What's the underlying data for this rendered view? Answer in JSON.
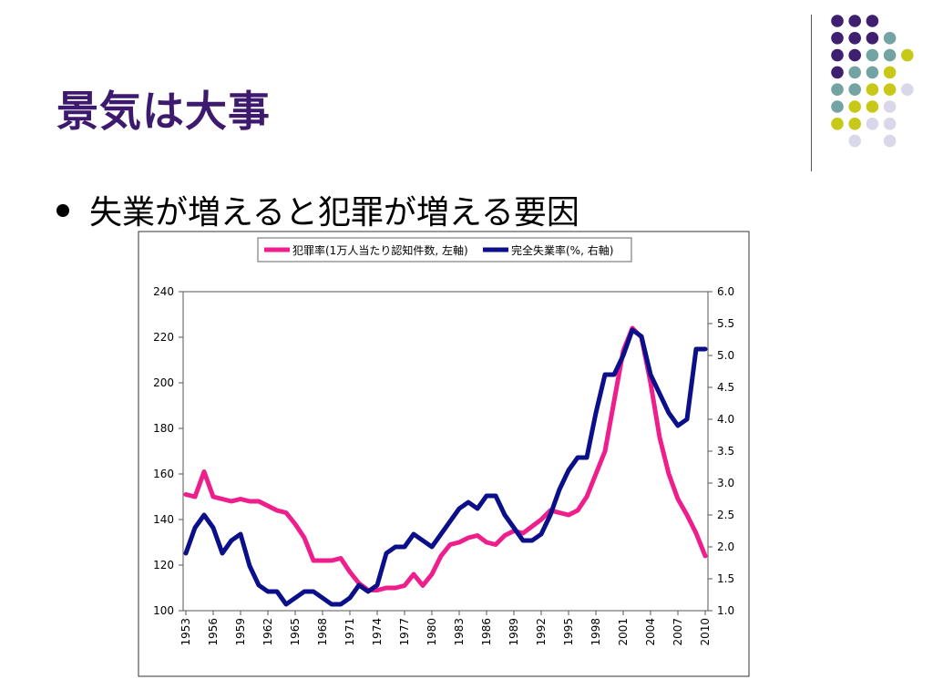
{
  "slide": {
    "title": "景気は大事",
    "bullet": "失業が増えると犯罪が増える要因"
  },
  "decoration": {
    "dot_colors": {
      "purple": "#3f1f6f",
      "teal": "#74a3a4",
      "yellow": "#c8c818",
      "lavender": "#d8d8ea"
    },
    "dot_grid": [
      [
        null,
        "purple",
        "purple",
        "purple",
        null
      ],
      [
        null,
        "purple",
        "purple",
        "purple",
        "teal"
      ],
      [
        null,
        "purple",
        "purple",
        "teal",
        "teal",
        "yellow"
      ],
      [
        null,
        "purple",
        "teal",
        "teal",
        "yellow"
      ],
      [
        null,
        "teal",
        "teal",
        "yellow",
        "yellow",
        "lavender"
      ],
      [
        null,
        "teal",
        "yellow",
        "yellow",
        "lavender"
      ],
      [
        null,
        "yellow",
        "yellow",
        "lavender",
        "lavender"
      ],
      [
        null,
        null,
        "lavender",
        null,
        "lavender"
      ]
    ]
  },
  "chart_data": {
    "type": "line",
    "colors": {
      "crime": "#ee1e8c",
      "unemployment": "#0b0f8a"
    },
    "legend": [
      {
        "name": "犯罪率(1万人当たり認知件数, 左軸)",
        "color": "#ee1e8c"
      },
      {
        "name": "完全失業率(%, 右軸)",
        "color": "#0b0f8a"
      }
    ],
    "y_left": {
      "min": 100,
      "max": 240,
      "ticks": [
        "100",
        "120",
        "140",
        "160",
        "180",
        "200",
        "220",
        "240"
      ]
    },
    "y_right": {
      "min": 1.0,
      "max": 6.0,
      "ticks": [
        "1.0",
        "1.5",
        "2.0",
        "2.5",
        "3.0",
        "3.5",
        "4.0",
        "4.5",
        "5.0",
        "5.5",
        "6.0"
      ]
    },
    "x_ticks": [
      "1953",
      "1956",
      "1959",
      "1962",
      "1965",
      "1968",
      "1971",
      "1974",
      "1977",
      "1980",
      "1983",
      "1986",
      "1989",
      "1992",
      "1995",
      "1998",
      "2001",
      "2004",
      "2007",
      "2010"
    ],
    "x_range": [
      1953,
      2010
    ],
    "series": [
      {
        "name": "犯罪率(1万人当たり認知件数, 左軸)",
        "axis": "left",
        "x": [
          1953,
          1954,
          1955,
          1956,
          1957,
          1958,
          1959,
          1960,
          1961,
          1962,
          1963,
          1964,
          1965,
          1966,
          1967,
          1968,
          1969,
          1970,
          1971,
          1972,
          1973,
          1974,
          1975,
          1976,
          1977,
          1978,
          1979,
          1980,
          1981,
          1982,
          1983,
          1984,
          1985,
          1986,
          1987,
          1988,
          1989,
          1990,
          1991,
          1992,
          1993,
          1994,
          1995,
          1996,
          1997,
          1998,
          1999,
          2000,
          2001,
          2002,
          2003,
          2004,
          2005,
          2006,
          2007,
          2008,
          2009,
          2010
        ],
        "values": [
          151,
          150,
          161,
          150,
          149,
          148,
          149,
          148,
          148,
          146,
          144,
          143,
          138,
          132,
          122,
          122,
          122,
          123,
          117,
          112,
          109,
          109,
          110,
          110,
          111,
          116,
          111,
          116,
          124,
          129,
          130,
          132,
          133,
          130,
          129,
          133,
          135,
          134,
          137,
          140,
          144,
          143,
          142,
          144,
          150,
          160,
          170,
          192,
          214,
          224,
          220,
          200,
          176,
          160,
          149,
          142,
          134,
          124
        ]
      },
      {
        "name": "完全失業率(%, 右軸)",
        "axis": "right",
        "x": [
          1953,
          1954,
          1955,
          1956,
          1957,
          1958,
          1959,
          1960,
          1961,
          1962,
          1963,
          1964,
          1965,
          1966,
          1967,
          1968,
          1969,
          1970,
          1971,
          1972,
          1973,
          1974,
          1975,
          1976,
          1977,
          1978,
          1979,
          1980,
          1981,
          1982,
          1983,
          1984,
          1985,
          1986,
          1987,
          1988,
          1989,
          1990,
          1991,
          1992,
          1993,
          1994,
          1995,
          1996,
          1997,
          1998,
          1999,
          2000,
          2001,
          2002,
          2003,
          2004,
          2005,
          2006,
          2007,
          2008,
          2009,
          2010
        ],
        "values": [
          1.9,
          2.3,
          2.5,
          2.3,
          1.9,
          2.1,
          2.2,
          1.7,
          1.4,
          1.3,
          1.3,
          1.1,
          1.2,
          1.3,
          1.3,
          1.2,
          1.1,
          1.1,
          1.2,
          1.4,
          1.3,
          1.4,
          1.9,
          2.0,
          2.0,
          2.2,
          2.1,
          2.0,
          2.2,
          2.4,
          2.6,
          2.7,
          2.6,
          2.8,
          2.8,
          2.5,
          2.3,
          2.1,
          2.1,
          2.2,
          2.5,
          2.9,
          3.2,
          3.4,
          3.4,
          4.1,
          4.7,
          4.7,
          5.0,
          5.4,
          5.3,
          4.7,
          4.4,
          4.1,
          3.9,
          4.0,
          5.1,
          5.1
        ]
      }
    ]
  }
}
